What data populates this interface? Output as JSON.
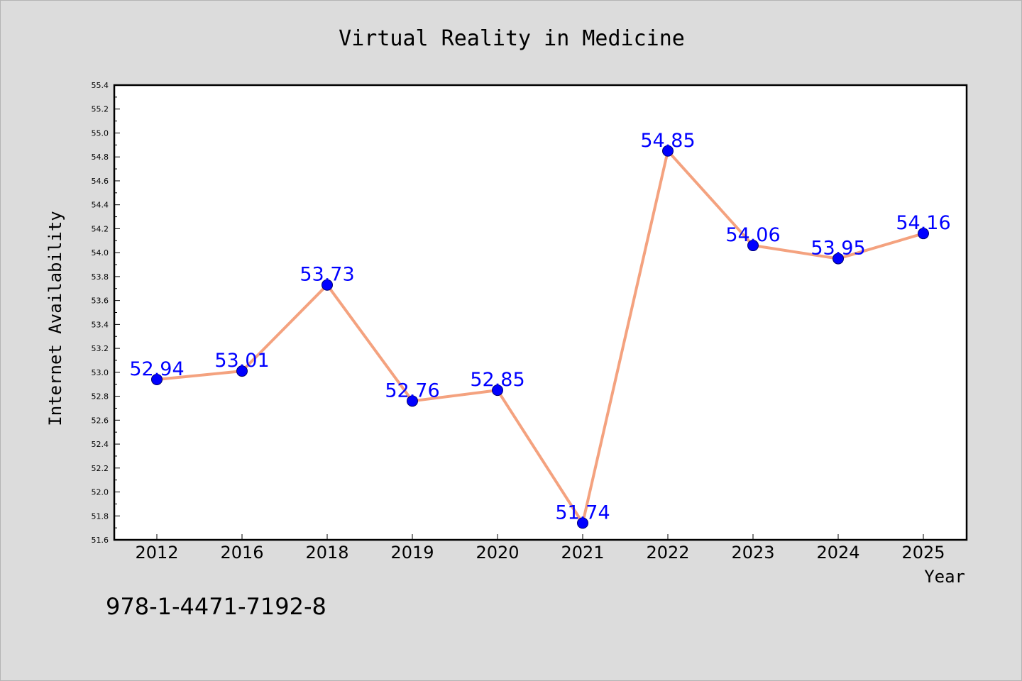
{
  "chart_data": {
    "type": "line",
    "title": "Virtual Reality in Medicine",
    "xlabel": "Year",
    "ylabel": "Internet Availability",
    "categories": [
      "2012",
      "2016",
      "2018",
      "2019",
      "2020",
      "2021",
      "2022",
      "2023",
      "2024",
      "2025"
    ],
    "series": [
      {
        "values": [
          52.94,
          53.01,
          53.73,
          52.76,
          52.85,
          51.74,
          54.85,
          54.06,
          53.95,
          54.16
        ]
      }
    ],
    "data_labels": [
      "52.94",
      "53.01",
      "53.73",
      "52.76",
      "52.85",
      "51.74",
      "54.85",
      "54.06",
      "53.95",
      "54.16"
    ],
    "ylim": [
      51.6,
      55.4
    ],
    "yticks": [
      "51.6",
      "51.8",
      "52.0",
      "52.2",
      "52.4",
      "52.6",
      "52.8",
      "53.0",
      "53.2",
      "53.4",
      "53.6",
      "53.8",
      "54.0",
      "54.2",
      "54.4",
      "54.6",
      "54.8",
      "55.0",
      "55.2",
      "55.4"
    ],
    "grid": false,
    "legend": "none",
    "colors": {
      "line": "#f4a27f",
      "marker": "#0000ff",
      "data_label": "#0000ff",
      "background": "#dcdcdc",
      "plot_area": "#ffffff"
    }
  },
  "footer": {
    "isbn": "978-1-4471-7192-8"
  }
}
